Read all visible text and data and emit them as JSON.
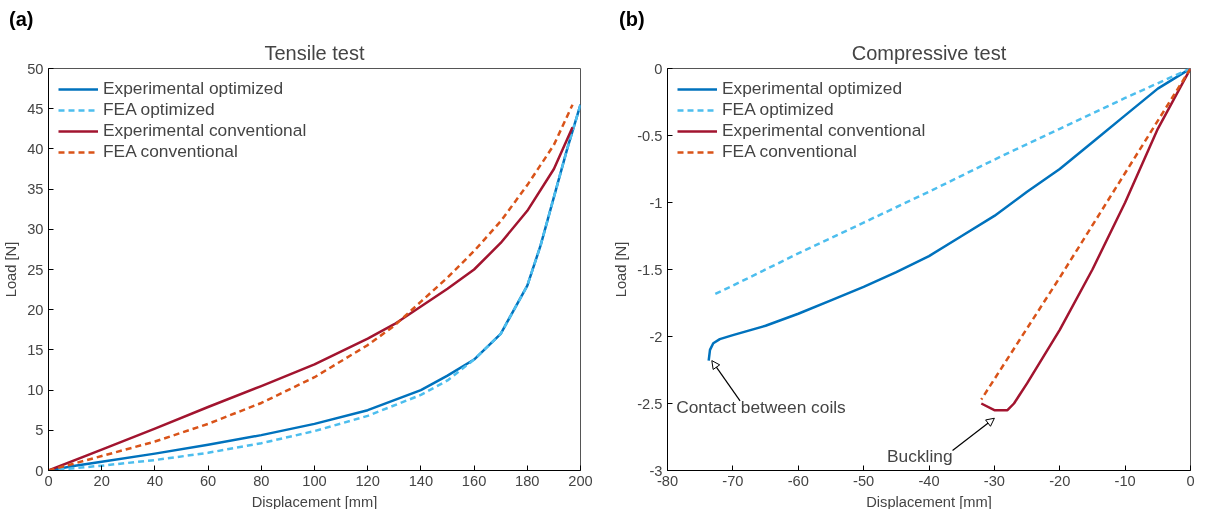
{
  "chart_data": [
    {
      "type": "line",
      "title": "Tensile test",
      "xlabel": "Displacement [mm]",
      "ylabel": "Load [N]",
      "annotations": [
        "(a)"
      ],
      "xlim": [
        0,
        200
      ],
      "ylim": [
        0,
        50
      ],
      "xticks": [
        0,
        20,
        40,
        60,
        80,
        100,
        120,
        140,
        160,
        180,
        200
      ],
      "yticks": [
        0,
        5,
        10,
        15,
        20,
        25,
        30,
        35,
        40,
        45,
        50
      ],
      "grid": false,
      "legend": "top left",
      "marker": "none",
      "series": [
        {
          "name": "Experimental optimized",
          "color": "#0072bd",
          "line_style": "solid",
          "x": [
            0,
            10,
            20,
            40,
            60,
            80,
            100,
            120,
            140,
            150,
            160,
            170,
            180,
            185,
            190,
            195,
            200
          ],
          "values": [
            0,
            0.6,
            1.1,
            2.1,
            3.2,
            4.4,
            5.8,
            7.5,
            10,
            11.8,
            13.8,
            17,
            23,
            28,
            34,
            40,
            45.5
          ]
        },
        {
          "name": "FEA optimized",
          "color": "#4dbeee",
          "line_style": "dashed",
          "x": [
            0,
            20,
            40,
            60,
            80,
            100,
            120,
            140,
            150,
            160,
            170,
            180,
            185,
            190,
            195,
            200
          ],
          "values": [
            0,
            0.6,
            1.3,
            2.2,
            3.4,
            4.9,
            6.8,
            9.4,
            11.2,
            13.8,
            17,
            23,
            28,
            34,
            40,
            45.5
          ]
        },
        {
          "name": "Experimental conventional",
          "color": "#a2142f",
          "line_style": "solid",
          "x": [
            0,
            20,
            40,
            60,
            80,
            100,
            120,
            130,
            140,
            150,
            160,
            170,
            180,
            190,
            197
          ],
          "values": [
            0,
            2.6,
            5.2,
            7.9,
            10.5,
            13.2,
            16.4,
            18.2,
            20.4,
            22.6,
            25,
            28.3,
            32.3,
            37.5,
            42.7
          ]
        },
        {
          "name": "FEA conventional",
          "color": "#d95319",
          "line_style": "dashed",
          "x": [
            0,
            20,
            40,
            60,
            80,
            100,
            120,
            130,
            140,
            150,
            160,
            170,
            180,
            190,
            197
          ],
          "values": [
            0,
            1.8,
            3.6,
            5.8,
            8.4,
            11.6,
            15.6,
            18,
            21,
            24,
            27.3,
            31,
            35.5,
            40.5,
            45.5
          ]
        }
      ]
    },
    {
      "type": "line",
      "title": "Compressive test",
      "xlabel": "Displacement [mm]",
      "ylabel": "Load [N]",
      "annotations": [
        "(b)",
        {
          "text": "Contact between coils",
          "x": -73.7,
          "y": -2.18
        },
        {
          "text": "Buckling",
          "x": -30,
          "y": -2.55
        }
      ],
      "xlim": [
        -80,
        0
      ],
      "ylim": [
        -3,
        0
      ],
      "xticks": [
        -80,
        -70,
        -60,
        -50,
        -40,
        -30,
        -20,
        -10,
        0
      ],
      "yticks": [
        -3,
        -2.5,
        -2,
        -1.5,
        -1,
        -0.5,
        0
      ],
      "grid": false,
      "legend": "top left",
      "marker": "none",
      "series": [
        {
          "name": "Experimental optimized",
          "color": "#0072bd",
          "line_style": "solid",
          "x": [
            0,
            -5,
            -10,
            -15,
            -20,
            -25,
            -30,
            -35,
            -40,
            -45,
            -50,
            -55,
            -60,
            -65,
            -70,
            -72,
            -73,
            -73.5,
            -73.7
          ],
          "values": [
            0,
            -0.15,
            -0.35,
            -0.55,
            -0.75,
            -0.92,
            -1.1,
            -1.25,
            -1.4,
            -1.52,
            -1.63,
            -1.73,
            -1.83,
            -1.92,
            -1.99,
            -2.02,
            -2.05,
            -2.1,
            -2.18
          ]
        },
        {
          "name": "FEA optimized",
          "color": "#4dbeee",
          "line_style": "dashed",
          "x": [
            0,
            -10,
            -20,
            -30,
            -40,
            -50,
            -60,
            -70,
            -73
          ],
          "values": [
            0,
            -0.22,
            -0.45,
            -0.68,
            -0.92,
            -1.15,
            -1.38,
            -1.62,
            -1.69
          ]
        },
        {
          "name": "Experimental conventional",
          "color": "#a2142f",
          "line_style": "solid",
          "x": [
            0,
            -5,
            -10,
            -15,
            -20,
            -25,
            -27,
            -28,
            -30,
            -32
          ],
          "values": [
            0,
            -0.45,
            -1.0,
            -1.5,
            -1.95,
            -2.35,
            -2.5,
            -2.55,
            -2.55,
            -2.5
          ]
        },
        {
          "name": "FEA conventional",
          "color": "#d95319",
          "line_style": "dashed",
          "x": [
            0,
            -10,
            -20,
            -32
          ],
          "values": [
            0,
            -0.78,
            -1.56,
            -2.47
          ]
        }
      ]
    }
  ]
}
